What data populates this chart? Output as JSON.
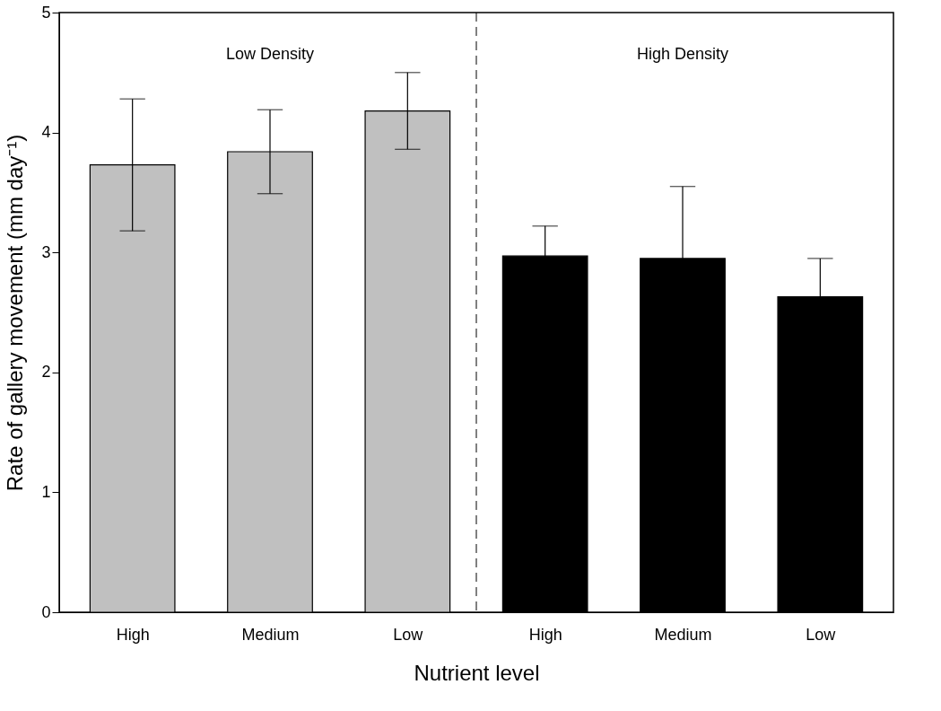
{
  "chart_data": {
    "type": "bar",
    "xlabel": "Nutrient level",
    "ylabel": "Rate of gallery movement (mm day⁻¹)",
    "categories": [
      "High",
      "Medium",
      "Low",
      "High",
      "Medium",
      "Low"
    ],
    "values": [
      3.73,
      3.84,
      4.18,
      2.97,
      2.95,
      2.63
    ],
    "errors": [
      0.55,
      0.35,
      0.32,
      0.25,
      0.6,
      0.32
    ],
    "colors": [
      "#c0c0c0",
      "#c0c0c0",
      "#c0c0c0",
      "#000000",
      "#000000",
      "#000000"
    ],
    "ylim": [
      0,
      5
    ],
    "yticks": [
      0,
      1,
      2,
      3,
      4,
      5
    ],
    "annotations": [
      "Low Density",
      "High Density"
    ],
    "grid": false,
    "legend": false
  }
}
